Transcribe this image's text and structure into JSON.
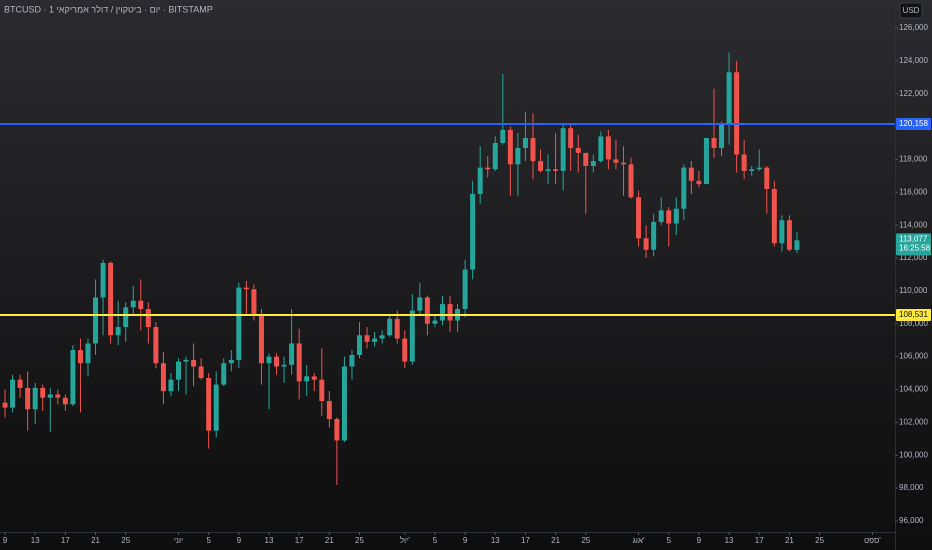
{
  "chart_data": {
    "type": "candlestick",
    "title": "BTCUSD · 1 יום · ביטקוין / דולר אמריקאי · BITSTAMP",
    "currency": "USD",
    "up_color": "#26a69a",
    "down_color": "#ef5350",
    "open": [
      103200,
      102900,
      104600,
      104100,
      102800,
      104100,
      103500,
      103700,
      103500,
      103100,
      106400,
      105600,
      106800,
      109600,
      111700,
      107300,
      107800,
      109000,
      109400,
      108900,
      107800,
      105600,
      103900,
      104600,
      105700,
      105800,
      105400,
      104700,
      101500,
      104300,
      105600,
      105800,
      110200,
      110100,
      108600,
      105600,
      106000,
      105400,
      105500,
      106800,
      104500,
      104800,
      104600,
      103300,
      102200,
      100900,
      105400,
      106100,
      107300,
      106900,
      107100,
      107300,
      108300,
      107100,
      105700,
      108800,
      109600,
      108000,
      108200,
      109200,
      108200,
      108900,
      111300,
      115900,
      117500,
      117400,
      119000,
      119800,
      117700,
      118700,
      119300,
      117900,
      117300,
      117400,
      117300,
      119900,
      118700,
      118400,
      117600,
      117900,
      119400,
      118000,
      117800,
      117700,
      115700,
      113200,
      112500,
      114200,
      114900,
      114100,
      115000,
      117500,
      116700,
      116500,
      119300,
      118700,
      120100,
      123300,
      118300,
      117300,
      117400,
      117500,
      116200,
      112900,
      114300,
      112500
    ],
    "high": [
      104000,
      104900,
      104900,
      105100,
      104400,
      104300,
      104100,
      104000,
      103700,
      106700,
      107100,
      107100,
      110700,
      111900,
      111800,
      109400,
      109300,
      110300,
      110700,
      109300,
      108100,
      106300,
      105000,
      105900,
      106000,
      106800,
      105900,
      105000,
      105100,
      105900,
      106400,
      110500,
      110600,
      110400,
      108900,
      106200,
      106200,
      106000,
      108900,
      107700,
      105500,
      105000,
      106500,
      103900,
      102300,
      106000,
      106400,
      108100,
      107800,
      107500,
      107600,
      108500,
      108800,
      107600,
      109800,
      110500,
      109700,
      108500,
      109700,
      109700,
      109200,
      111900,
      116700,
      118800,
      118200,
      119400,
      123200,
      120000,
      119600,
      120900,
      120800,
      118600,
      118300,
      119600,
      120200,
      120100,
      119500,
      118400,
      118300,
      119700,
      119800,
      119200,
      118800,
      118100,
      116100,
      114000,
      114700,
      115700,
      115100,
      115700,
      117700,
      117900,
      117300,
      119300,
      122300,
      120300,
      124500,
      124000,
      119200,
      117600,
      118600,
      117600,
      116700,
      114600,
      114600,
      113600
    ],
    "low": [
      102300,
      102600,
      103500,
      101500,
      101900,
      102700,
      101400,
      103100,
      102700,
      103000,
      102600,
      104800,
      106100,
      107300,
      106800,
      106700,
      106900,
      108600,
      107600,
      106800,
      105300,
      103100,
      103600,
      103900,
      103700,
      104200,
      104600,
      100400,
      101100,
      104200,
      105100,
      105300,
      108500,
      108200,
      104300,
      102800,
      104900,
      104400,
      104900,
      103400,
      103600,
      103900,
      102400,
      101700,
      98200,
      100800,
      104600,
      105900,
      106500,
      106600,
      106800,
      107200,
      106800,
      105300,
      105500,
      108600,
      107300,
      107800,
      107900,
      107500,
      107500,
      108400,
      110700,
      115300,
      116900,
      117300,
      118900,
      115800,
      115800,
      117900,
      116800,
      117200,
      116500,
      116500,
      116100,
      117300,
      117200,
      114700,
      117200,
      117800,
      117400,
      117400,
      115800,
      115600,
      112700,
      112000,
      112100,
      114000,
      112700,
      113400,
      114300,
      115900,
      116300,
      116500,
      118100,
      118200,
      118900,
      117200,
      116800,
      117000,
      117300,
      114700,
      112700,
      112400,
      112400,
      112300
    ],
    "close": [
      102900,
      104600,
      104100,
      102800,
      104100,
      103500,
      103700,
      103500,
      103100,
      106400,
      105600,
      106800,
      109600,
      111700,
      107300,
      107800,
      109000,
      109400,
      108900,
      107800,
      105600,
      103900,
      104600,
      105700,
      105800,
      105400,
      104700,
      101500,
      104300,
      105600,
      105800,
      110200,
      110100,
      108600,
      105600,
      106000,
      105400,
      105500,
      106800,
      104500,
      104800,
      104600,
      103300,
      102200,
      100900,
      105400,
      106100,
      107300,
      106900,
      107100,
      107300,
      108300,
      107100,
      105700,
      108800,
      109600,
      108000,
      108200,
      109200,
      108200,
      108900,
      111300,
      115900,
      117500,
      117400,
      119000,
      119800,
      117700,
      118700,
      119300,
      117900,
      117300,
      117400,
      117300,
      119900,
      118700,
      118400,
      117600,
      117900,
      119400,
      118000,
      117800,
      117700,
      115700,
      113200,
      112500,
      114200,
      114900,
      114100,
      115000,
      117500,
      116700,
      116500,
      119300,
      118700,
      120100,
      123300,
      118300,
      117300,
      117400,
      117500,
      116200,
      112900,
      114300,
      112500,
      113077
    ],
    "last_price_label": "113,077",
    "countdown": "16:25:58",
    "hlines": [
      {
        "value": 120158,
        "label": "120,158",
        "color": "#2962ff"
      },
      {
        "value": 108531,
        "label": "108,531",
        "color": "#ffeb3b"
      }
    ],
    "xlim": [
      -0.667,
      118
    ],
    "xticks": [
      {
        "value": 0,
        "label": "9"
      },
      {
        "value": 4,
        "label": "13"
      },
      {
        "value": 8,
        "label": "17"
      },
      {
        "value": 12,
        "label": "21"
      },
      {
        "value": 16,
        "label": "25"
      },
      {
        "value": 23,
        "label": "יוני"
      },
      {
        "value": 27,
        "label": "5"
      },
      {
        "value": 31,
        "label": "9"
      },
      {
        "value": 35,
        "label": "13"
      },
      {
        "value": 39,
        "label": "17"
      },
      {
        "value": 43,
        "label": "21"
      },
      {
        "value": 47,
        "label": "25"
      },
      {
        "value": 53,
        "label": "יול'"
      },
      {
        "value": 57,
        "label": "5"
      },
      {
        "value": 61,
        "label": "9"
      },
      {
        "value": 65,
        "label": "13"
      },
      {
        "value": 69,
        "label": "17"
      },
      {
        "value": 73,
        "label": "21"
      },
      {
        "value": 77,
        "label": "25"
      },
      {
        "value": 84,
        "label": "אוג'"
      },
      {
        "value": 88,
        "label": "5"
      },
      {
        "value": 92,
        "label": "9"
      },
      {
        "value": 96,
        "label": "13"
      },
      {
        "value": 100,
        "label": "17"
      },
      {
        "value": 104,
        "label": "21"
      },
      {
        "value": 108,
        "label": "25"
      },
      {
        "value": 115,
        "label": "ספט'"
      }
    ],
    "ylim": [
      95330,
      127700
    ],
    "yticks": [
      {
        "value": 96000,
        "label": "96,000"
      },
      {
        "value": 98000,
        "label": "98,000"
      },
      {
        "value": 100000,
        "label": "100,000"
      },
      {
        "value": 102000,
        "label": "102,000"
      },
      {
        "value": 104000,
        "label": "104,000"
      },
      {
        "value": 106000,
        "label": "106,000"
      },
      {
        "value": 108000,
        "label": "108,000"
      },
      {
        "value": 110000,
        "label": "110,000"
      },
      {
        "value": 112000,
        "label": "112,000"
      },
      {
        "value": 114000,
        "label": "114,000"
      },
      {
        "value": 116000,
        "label": "116,000"
      },
      {
        "value": 118000,
        "label": "118,000"
      },
      {
        "value": 120000,
        "label": "120,000"
      },
      {
        "value": 122000,
        "label": "122,000"
      },
      {
        "value": 124000,
        "label": "124,000"
      },
      {
        "value": 126000,
        "label": "126,000"
      }
    ]
  }
}
